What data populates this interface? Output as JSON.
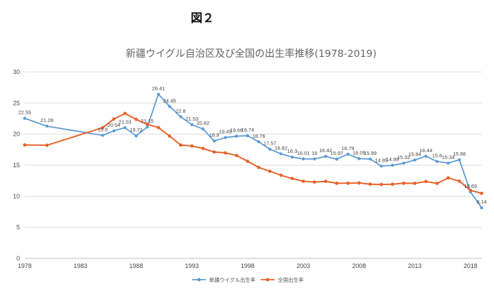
{
  "figure_label": "図２",
  "chart_data": {
    "type": "line",
    "title": "新疆ウイグル自治区及び全国の出生率推移(1978-2019)",
    "ylim": [
      0,
      30
    ],
    "xlim": [
      1978,
      2019
    ],
    "yticks": [
      0,
      5,
      10,
      15,
      20,
      25,
      30
    ],
    "xticks": [
      1978,
      1983,
      1988,
      1993,
      1998,
      2003,
      2008,
      2013,
      2018
    ],
    "grid": "horizontal",
    "legend_position": "bottom-center",
    "series": [
      {
        "name": "新疆ウイグル出生率",
        "color": "#5b9bd5",
        "x": [
          1978,
          1980,
          1985,
          1986,
          1987,
          1988,
          1989,
          1990,
          1991,
          1992,
          1993,
          1994,
          1995,
          1996,
          1997,
          1998,
          1999,
          2000,
          2001,
          2002,
          2003,
          2004,
          2005,
          2006,
          2007,
          2008,
          2009,
          2010,
          2011,
          2012,
          2013,
          2014,
          2015,
          2016,
          2017,
          2018,
          2019
        ],
        "values": [
          22.55,
          21.28,
          19.8,
          20.54,
          21.03,
          19.72,
          21.15,
          26.41,
          24.45,
          22.8,
          21.53,
          20.82,
          18.9,
          19.45,
          19.66,
          19.74,
          18.76,
          17.57,
          16.82,
          16.3,
          16.01,
          16,
          16.42,
          15.97,
          16.79,
          16.05,
          15.99,
          14.85,
          14.99,
          15.32,
          15.84,
          16.44,
          15.6,
          15.34,
          15.88,
          10.69,
          8.14
        ],
        "labels": [
          "22.55",
          "21.28",
          "19.8",
          "20.54",
          "21.03",
          "19.72",
          "21.15",
          "26.41",
          "24.45",
          "22.8",
          "21.53",
          "20.82",
          "18.9",
          "19.45",
          "19.66",
          "19.74",
          "18.76",
          "17.57",
          "16.82",
          "16.3",
          "16.01",
          "16",
          "16.42",
          "15.97",
          "16.79",
          "16.05",
          "15.99",
          "14.85",
          "14.99",
          "15.32",
          "15.84",
          "16.44",
          "15.6",
          "15.34",
          "15.88",
          "10.69",
          "8.14"
        ]
      },
      {
        "name": "全国出生率",
        "color": "#e8612a",
        "x": [
          1978,
          1980,
          1985,
          1986,
          1987,
          1988,
          1989,
          1990,
          1991,
          1992,
          1993,
          1994,
          1995,
          1996,
          1997,
          1998,
          1999,
          2000,
          2001,
          2002,
          2003,
          2004,
          2005,
          2006,
          2007,
          2008,
          2009,
          2010,
          2011,
          2012,
          2013,
          2014,
          2015,
          2016,
          2017,
          2018,
          2019
        ],
        "values": [
          18.25,
          18.21,
          21.04,
          22.43,
          23.33,
          22.37,
          21.58,
          21.06,
          19.68,
          18.24,
          18.09,
          17.7,
          17.12,
          16.98,
          16.57,
          15.64,
          14.64,
          14.03,
          13.38,
          12.86,
          12.41,
          12.29,
          12.4,
          12.09,
          12.1,
          12.14,
          11.95,
          11.9,
          11.93,
          12.1,
          12.08,
          12.37,
          12.07,
          12.95,
          12.43,
          10.94,
          10.48
        ]
      }
    ]
  }
}
